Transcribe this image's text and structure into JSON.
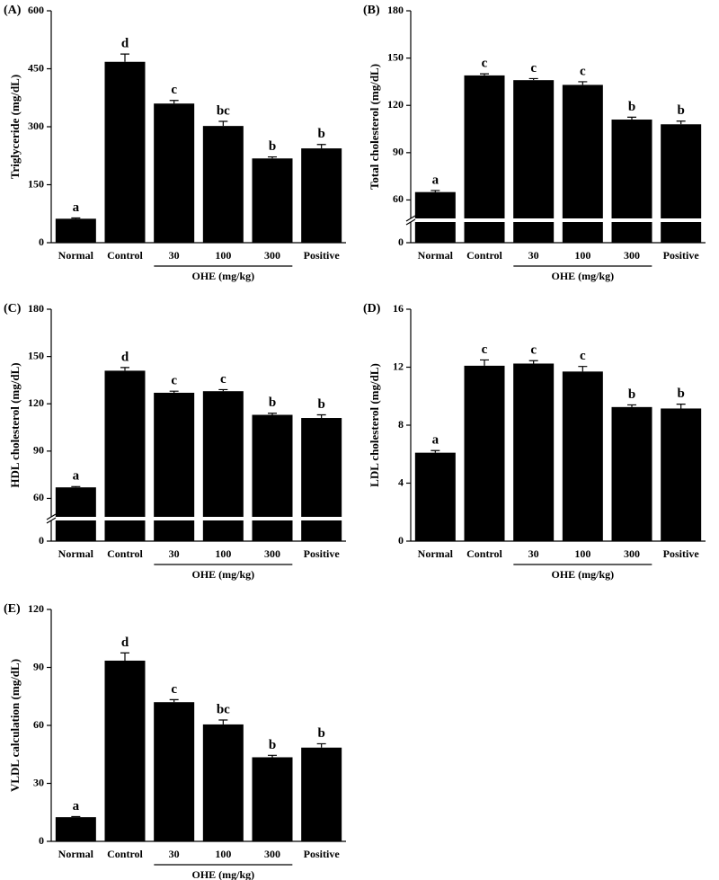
{
  "chart_data": [
    {
      "type": "bar",
      "title": "(A)",
      "ylabel": "Triglyceride (mg/dL)",
      "group_label": "OHE (mg/kg)",
      "categories": [
        "Normal",
        "Control",
        "30",
        "100",
        "300",
        "Positive"
      ],
      "values": [
        62,
        468,
        360,
        302,
        218,
        244
      ],
      "errors": [
        2,
        20,
        8,
        12,
        4,
        10
      ],
      "annotations": [
        "a",
        "d",
        "c",
        "bc",
        "b",
        "b"
      ],
      "color": "#000000",
      "ylim": [
        0,
        600
      ],
      "yticks": [
        0,
        150,
        300,
        450,
        600
      ]
    },
    {
      "type": "bar",
      "title": "(B)",
      "ylabel": "Total cholesterol (mg/dL)",
      "group_label": "OHE (mg/kg)",
      "categories": [
        "Normal",
        "Control",
        "30",
        "100",
        "300",
        "Positive"
      ],
      "values": [
        65,
        139,
        136,
        133,
        111,
        108
      ],
      "errors": [
        1,
        1,
        1,
        2,
        1.5,
        2
      ],
      "annotations": [
        "a",
        "c",
        "c",
        "c",
        "b",
        "b"
      ],
      "color": "#000000",
      "ylim": [
        0,
        180
      ],
      "yticks": [
        0,
        60,
        90,
        120,
        150,
        180
      ],
      "axis_break": [
        10,
        50
      ]
    },
    {
      "type": "bar",
      "title": "(C)",
      "ylabel": "HDL cholesterol (mg/dL)",
      "group_label": "OHE (mg/kg)",
      "categories": [
        "Normal",
        "Control",
        "30",
        "100",
        "300",
        "Positive"
      ],
      "values": [
        67,
        141,
        127,
        128,
        113,
        111
      ],
      "errors": [
        0.5,
        2,
        1,
        1,
        1,
        2
      ],
      "annotations": [
        "a",
        "d",
        "c",
        "c",
        "b",
        "b"
      ],
      "color": "#000000",
      "ylim": [
        0,
        180
      ],
      "yticks": [
        0,
        60,
        90,
        120,
        150,
        180
      ],
      "axis_break": [
        10,
        50
      ]
    },
    {
      "type": "bar",
      "title": "(D)",
      "ylabel": "LDL cholesterol (mg/dL)",
      "group_label": "OHE (mg/kg)",
      "categories": [
        "Normal",
        "Control",
        "30",
        "100",
        "300",
        "Positive"
      ],
      "values": [
        6.1,
        12.1,
        12.25,
        11.7,
        9.25,
        9.15
      ],
      "errors": [
        0.15,
        0.4,
        0.2,
        0.35,
        0.15,
        0.3
      ],
      "annotations": [
        "a",
        "c",
        "c",
        "c",
        "b",
        "b"
      ],
      "color": "#000000",
      "ylim": [
        0,
        16
      ],
      "yticks": [
        0,
        4,
        8,
        12,
        16
      ]
    },
    {
      "type": "bar",
      "title": "(E)",
      "ylabel": "VLDL calculation (mg/dL)",
      "group_label": "OHE (mg/kg)",
      "categories": [
        "Normal",
        "Control",
        "30",
        "100",
        "300",
        "Positive"
      ],
      "values": [
        12.5,
        93.5,
        72,
        60.5,
        43.5,
        48.5
      ],
      "errors": [
        0.3,
        4,
        1.3,
        2.3,
        1,
        2
      ],
      "annotations": [
        "a",
        "d",
        "c",
        "bc",
        "b",
        "b"
      ],
      "color": "#000000",
      "ylim": [
        0,
        120
      ],
      "yticks": [
        0,
        30,
        60,
        90,
        120
      ]
    }
  ]
}
